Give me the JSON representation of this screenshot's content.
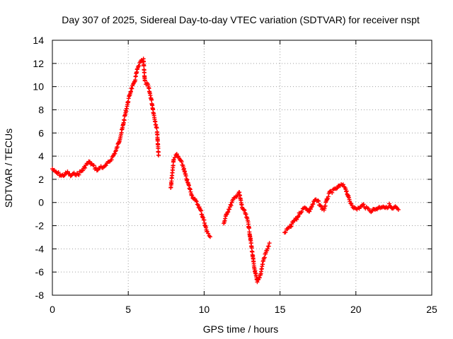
{
  "chart_data": {
    "type": "scatter",
    "title": "Day 307 of 2025, Sidereal Day-to-day VTEC variation (SDTVAR) for receiver nspt",
    "xlabel": "GPS time / hours",
    "ylabel": "SDTVAR / TECUs",
    "xlim": [
      0,
      25
    ],
    "ylim": [
      -8,
      14
    ],
    "xticks": [
      "0",
      "5",
      "10",
      "15",
      "20",
      "25"
    ],
    "xtick_values": [
      0,
      5,
      10,
      15,
      20,
      25
    ],
    "yticks": [
      "-8",
      "-6",
      "-4",
      "-2",
      "0",
      "2",
      "4",
      "6",
      "8",
      "10",
      "12",
      "14"
    ],
    "ytick_values": [
      -8,
      -6,
      -4,
      -2,
      0,
      2,
      4,
      6,
      8,
      10,
      12,
      14
    ],
    "grid": true,
    "marker": "+",
    "series": [
      {
        "name": "SDTVAR",
        "color": "#ff0000",
        "x": [
          0.0,
          0.2,
          0.4,
          0.6,
          0.8,
          1.0,
          1.2,
          1.5,
          1.7,
          1.8,
          2.0,
          2.2,
          2.4,
          2.6,
          2.8,
          3.0,
          3.2,
          3.4,
          3.6,
          3.8,
          4.0,
          4.2,
          4.4,
          4.6,
          4.8,
          5.0,
          5.2,
          5.4,
          5.6,
          5.8,
          6.0,
          6.1,
          6.3,
          6.5,
          6.7,
          6.9,
          7.0,
          7.8,
          8.0,
          8.2,
          8.4,
          8.6,
          8.8,
          9.0,
          9.2,
          9.4,
          9.6,
          9.8,
          10.0,
          10.2,
          10.4,
          11.3,
          11.5,
          11.7,
          11.9,
          12.1,
          12.3,
          12.5,
          12.7,
          12.9,
          13.1,
          13.3,
          13.5,
          13.7,
          13.9,
          14.1,
          14.3,
          15.3,
          15.5,
          15.7,
          15.9,
          16.1,
          16.3,
          16.5,
          16.7,
          16.9,
          17.1,
          17.3,
          17.5,
          17.7,
          17.9,
          18.1,
          18.3,
          18.5,
          18.7,
          18.9,
          19.1,
          19.3,
          19.6,
          19.8,
          20.0,
          20.3,
          20.5,
          20.7,
          21.0,
          21.2,
          21.4,
          21.6,
          21.8,
          22.0,
          22.2,
          22.4,
          22.6,
          22.8
        ],
        "y": [
          2.9,
          2.6,
          2.5,
          2.3,
          2.4,
          2.6,
          2.3,
          2.5,
          2.4,
          2.6,
          2.8,
          3.2,
          3.5,
          3.3,
          3.0,
          2.8,
          3.1,
          3.0,
          3.3,
          3.6,
          4.0,
          4.5,
          5.3,
          6.3,
          7.6,
          8.8,
          9.8,
          10.3,
          11.5,
          12.1,
          12.3,
          10.4,
          10.1,
          9.0,
          7.5,
          6.2,
          4.0,
          1.2,
          3.8,
          4.1,
          3.7,
          3.2,
          2.2,
          1.4,
          0.6,
          0.2,
          -0.2,
          -0.8,
          -1.6,
          -2.6,
          -2.9,
          -1.8,
          -0.9,
          -0.4,
          0.2,
          0.5,
          0.9,
          -0.4,
          -0.9,
          -1.7,
          -3.6,
          -5.6,
          -6.9,
          -6.3,
          -5.0,
          -4.2,
          -3.6,
          -2.6,
          -2.3,
          -2.1,
          -1.6,
          -1.4,
          -0.9,
          -0.6,
          -0.4,
          -0.8,
          -0.3,
          0.2,
          0.1,
          -0.4,
          -0.6,
          0.3,
          0.9,
          1.0,
          1.2,
          1.4,
          1.5,
          1.3,
          0.1,
          -0.3,
          -0.6,
          -0.4,
          -0.2,
          -0.5,
          -0.7,
          -0.6,
          -0.5,
          -0.4,
          -0.3,
          -0.5,
          -0.2,
          -0.6,
          -0.4,
          -0.7
        ]
      }
    ]
  }
}
